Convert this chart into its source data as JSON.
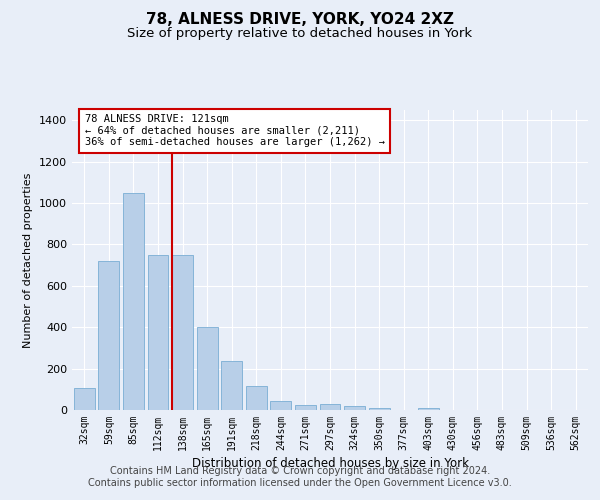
{
  "title": "78, ALNESS DRIVE, YORK, YO24 2XZ",
  "subtitle": "Size of property relative to detached houses in York",
  "xlabel": "Distribution of detached houses by size in York",
  "ylabel": "Number of detached properties",
  "categories": [
    "32sqm",
    "59sqm",
    "85sqm",
    "112sqm",
    "138sqm",
    "165sqm",
    "191sqm",
    "218sqm",
    "244sqm",
    "271sqm",
    "297sqm",
    "324sqm",
    "350sqm",
    "377sqm",
    "403sqm",
    "430sqm",
    "456sqm",
    "483sqm",
    "509sqm",
    "536sqm",
    "562sqm"
  ],
  "values": [
    105,
    720,
    1050,
    750,
    750,
    400,
    235,
    115,
    45,
    25,
    30,
    20,
    10,
    0,
    10,
    0,
    0,
    0,
    0,
    0,
    0
  ],
  "bar_color": "#b8cfe8",
  "bar_edgecolor": "#7aadd4",
  "vline_color": "#cc0000",
  "annotation_lines": [
    "78 ALNESS DRIVE: 121sqm",
    "← 64% of detached houses are smaller (2,211)",
    "36% of semi-detached houses are larger (1,262) →"
  ],
  "annotation_box_color": "#ffffff",
  "annotation_box_edgecolor": "#cc0000",
  "ylim": [
    0,
    1450
  ],
  "yticks": [
    0,
    200,
    400,
    600,
    800,
    1000,
    1200,
    1400
  ],
  "footer_line1": "Contains HM Land Registry data © Crown copyright and database right 2024.",
  "footer_line2": "Contains public sector information licensed under the Open Government Licence v3.0.",
  "background_color": "#e8eef8",
  "plot_background_color": "#e8eef8",
  "grid_color": "#ffffff",
  "title_fontsize": 11,
  "subtitle_fontsize": 9.5,
  "footer_fontsize": 7.0
}
